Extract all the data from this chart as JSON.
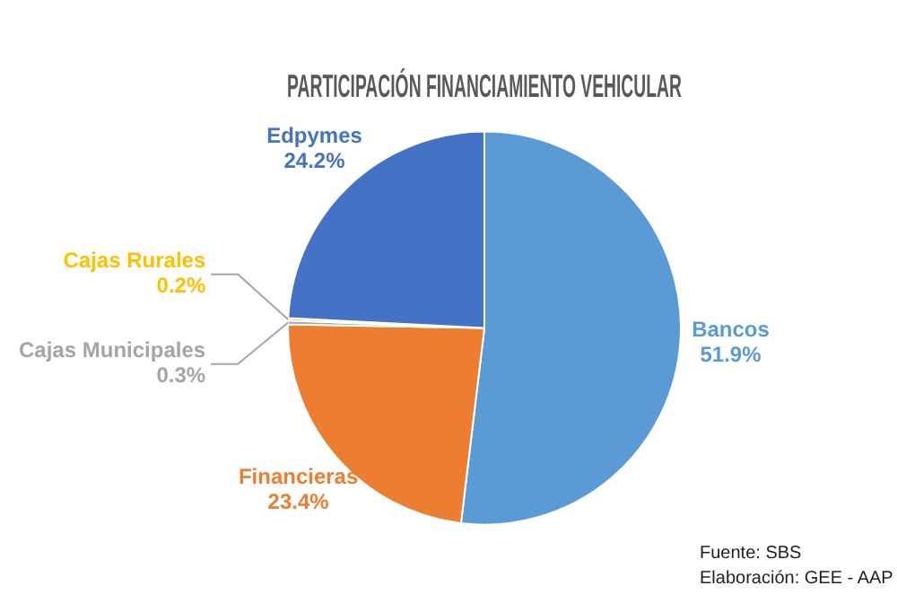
{
  "chart_data": {
    "type": "pie",
    "title": "PARTICIPACIÓN FINANCIAMIENTO VEHICULAR",
    "categories": [
      "Bancos",
      "Financieras",
      "Cajas Municipales",
      "Cajas Rurales",
      "Edpymes"
    ],
    "values": [
      51.9,
      23.4,
      0.3,
      0.2,
      24.2
    ],
    "value_labels": [
      "51.9%",
      "23.4%",
      "0.3%",
      "0.2%",
      "24.2%"
    ],
    "colors": [
      "#5b9bd5",
      "#ed7d31",
      "#a5a5a5",
      "#ffc000",
      "#4472c4"
    ],
    "legend": false,
    "annotations": [
      "Fuente: SBS",
      "Elaboración: GEE - AAP"
    ]
  }
}
